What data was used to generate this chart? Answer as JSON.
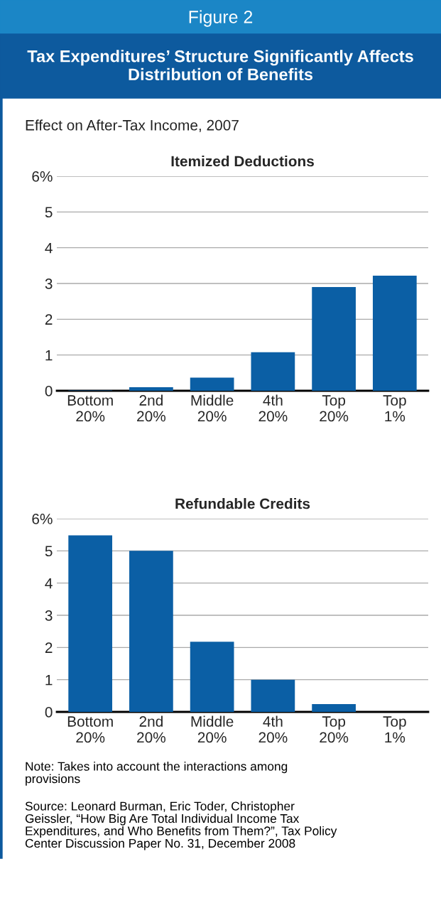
{
  "chart_data": [
    {
      "type": "bar",
      "title": "Itemized Deductions",
      "annotations": [
        "Figure 2",
        "Tax Expenditures’ Structure Significantly Affects Distribution of Benefits",
        "Effect on After-Tax Income, 2007"
      ],
      "categories": [
        "Bottom\n20%",
        "2nd\n20%",
        "Middle\n20%",
        "4th\n20%",
        "Top\n20%",
        "Top\n1%"
      ],
      "values": [
        0.01,
        0.1,
        0.37,
        1.08,
        2.9,
        3.22
      ],
      "color": "#0b5fa5",
      "ylim": [
        0,
        6
      ],
      "yticks": [
        0,
        1,
        2,
        3,
        4,
        5,
        {
          "value": 6,
          "label": "6%"
        }
      ],
      "grid": "y"
    },
    {
      "type": "bar",
      "title": "Refundable Credits",
      "annotations": [
        "Note: Takes into account the interactions among\nprovisions",
        "Source: Leonard Burman, Eric Toder, Christopher\nGeissler, “How Big Are Total Individual Income Tax\nExpenditures, and Who Benefits from Them?”, Tax Policy\nCenter Discussion Paper No. 31, December 2008"
      ],
      "categories": [
        "Bottom\n20%",
        "2nd\n20%",
        "Middle\n20%",
        "4th\n20%",
        "Top\n20%",
        "Top\n1%"
      ],
      "values": [
        5.48,
        5.0,
        2.18,
        1.0,
        0.24,
        0.0
      ],
      "color": "#0b5fa5",
      "ylim": [
        0,
        6
      ],
      "yticks": [
        0,
        1,
        2,
        3,
        4,
        5,
        {
          "value": 6,
          "label": "6%"
        }
      ],
      "grid": "y"
    }
  ]
}
